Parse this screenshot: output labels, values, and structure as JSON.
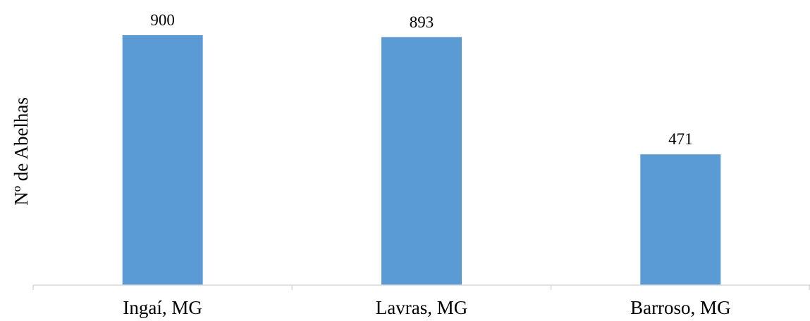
{
  "chart_data": {
    "type": "bar",
    "categories": [
      "Ingaí, MG",
      "Lavras, MG",
      "Barroso, MG"
    ],
    "values": [
      900,
      893,
      471
    ],
    "data_labels": [
      "900",
      "893",
      "471"
    ],
    "title": "",
    "xlabel": "",
    "ylabel": "Nº de Abelhas",
    "ylim": [
      0,
      900
    ],
    "grid": false,
    "legend": "none",
    "bar_color": "#5b9bd5",
    "axis_color": "#d9d9d9"
  }
}
